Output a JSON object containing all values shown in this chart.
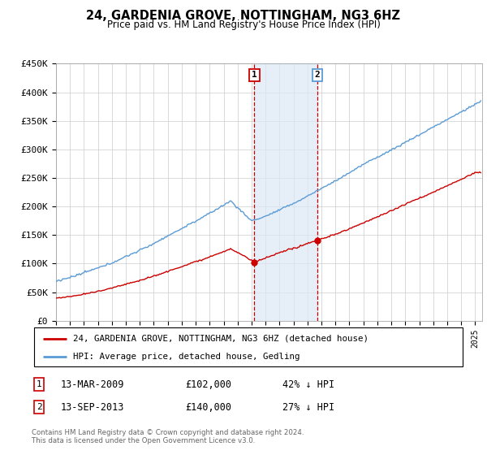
{
  "title": "24, GARDENIA GROVE, NOTTINGHAM, NG3 6HZ",
  "subtitle": "Price paid vs. HM Land Registry's House Price Index (HPI)",
  "ylabel_ticks": [
    "£0",
    "£50K",
    "£100K",
    "£150K",
    "£200K",
    "£250K",
    "£300K",
    "£350K",
    "£400K",
    "£450K"
  ],
  "ytick_values": [
    0,
    50000,
    100000,
    150000,
    200000,
    250000,
    300000,
    350000,
    400000,
    450000
  ],
  "ylim": [
    0,
    450000
  ],
  "xlim_start": 1995.0,
  "xlim_end": 2025.5,
  "hpi_color": "#5b9bd5",
  "price_color": "#cc0000",
  "marker1_date": 2009.2,
  "marker1_price": 102000,
  "marker2_date": 2013.7,
  "marker2_price": 140000,
  "shade_color": "#dce9f5",
  "shade_alpha": 0.7,
  "legend_line1": "24, GARDENIA GROVE, NOTTINGHAM, NG3 6HZ (detached house)",
  "legend_line2": "HPI: Average price, detached house, Gedling",
  "footnote": "Contains HM Land Registry data © Crown copyright and database right 2024.\nThis data is licensed under the Open Government Licence v3.0.",
  "table_row1": [
    "1",
    "13-MAR-2009",
    "£102,000",
    "42% ↓ HPI"
  ],
  "table_row2": [
    "2",
    "13-SEP-2013",
    "£140,000",
    "27% ↓ HPI"
  ]
}
